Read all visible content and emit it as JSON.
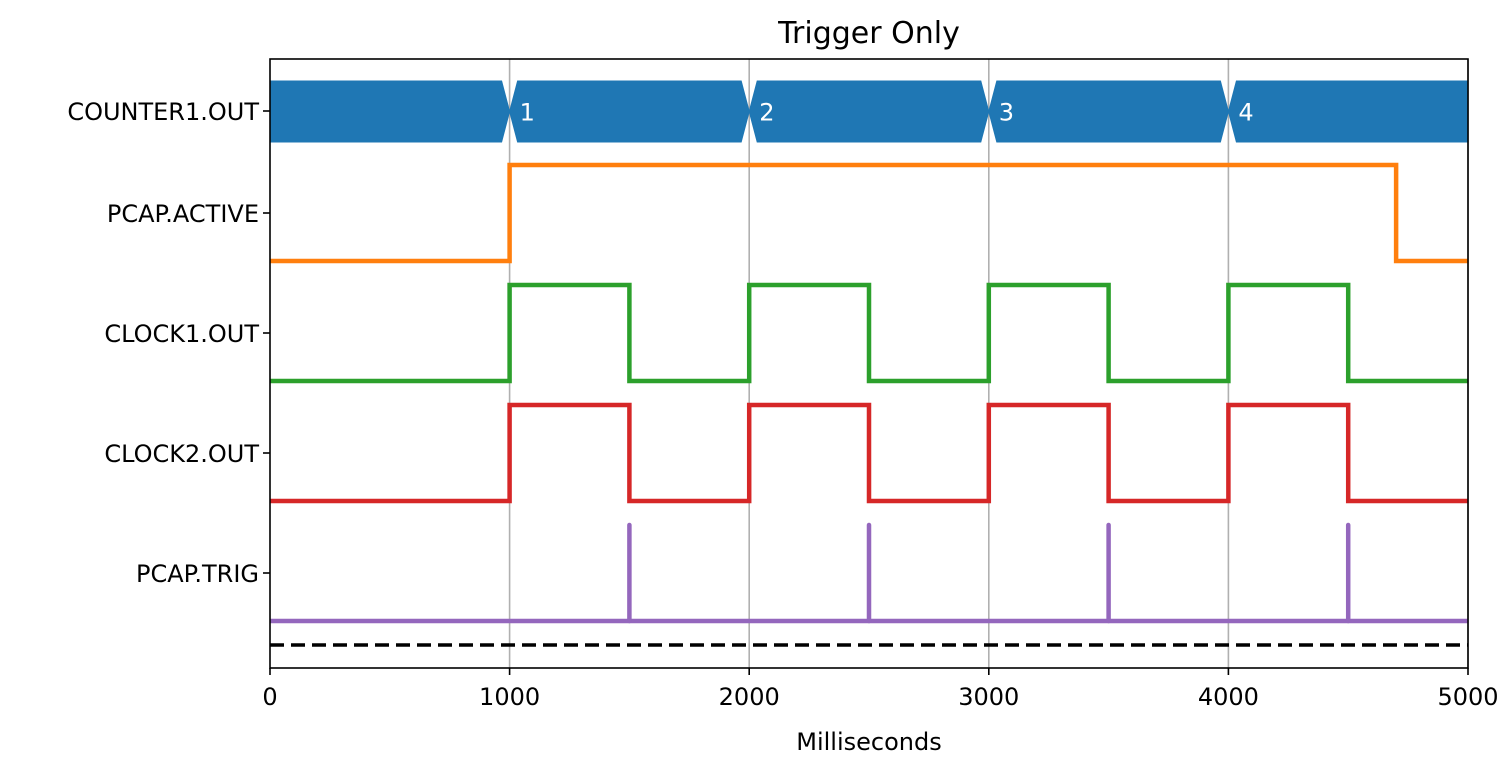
{
  "chart_data": {
    "type": "line",
    "chart_kind": "timing-diagram",
    "title": "Trigger Only",
    "xlabel": "Milliseconds",
    "ylabel": "",
    "xlim": [
      0,
      5000
    ],
    "x_ticks": [
      0,
      1000,
      2000,
      3000,
      4000,
      5000
    ],
    "x_tick_labels": [
      "0",
      "1000",
      "2000",
      "3000",
      "4000",
      "5000"
    ],
    "grid": "vertical at x ticks",
    "series": [
      {
        "name": "COUNTER1.OUT",
        "kind": "bus",
        "color": "#1f77b4",
        "segments": [
          {
            "start": 0,
            "end": 1000,
            "label": ""
          },
          {
            "start": 1000,
            "end": 2000,
            "label": "1"
          },
          {
            "start": 2000,
            "end": 3000,
            "label": "2"
          },
          {
            "start": 3000,
            "end": 4000,
            "label": "3"
          },
          {
            "start": 4000,
            "end": 5000,
            "label": "4"
          }
        ]
      },
      {
        "name": "PCAP.ACTIVE",
        "kind": "step",
        "color": "#ff7f0e",
        "x": [
          0,
          1000,
          4700,
          5000
        ],
        "y": [
          0,
          1,
          0,
          0
        ]
      },
      {
        "name": "CLOCK1.OUT",
        "kind": "step",
        "color": "#2ca02c",
        "x": [
          0,
          1000,
          1500,
          2000,
          2500,
          3000,
          3500,
          4000,
          4500,
          5000
        ],
        "y": [
          0,
          1,
          0,
          1,
          0,
          1,
          0,
          1,
          0,
          0
        ]
      },
      {
        "name": "CLOCK2.OUT",
        "kind": "step",
        "color": "#d62728",
        "x": [
          0,
          1000,
          1500,
          2000,
          2500,
          3000,
          3500,
          4000,
          4500,
          5000
        ],
        "y": [
          0,
          1,
          0,
          1,
          0,
          1,
          0,
          1,
          0,
          0
        ]
      },
      {
        "name": "PCAP.TRIG",
        "kind": "pulse",
        "color": "#9467bd",
        "pulses": [
          1500,
          2500,
          3500,
          4500
        ]
      }
    ],
    "dashed_baseline_color": "#000000"
  }
}
